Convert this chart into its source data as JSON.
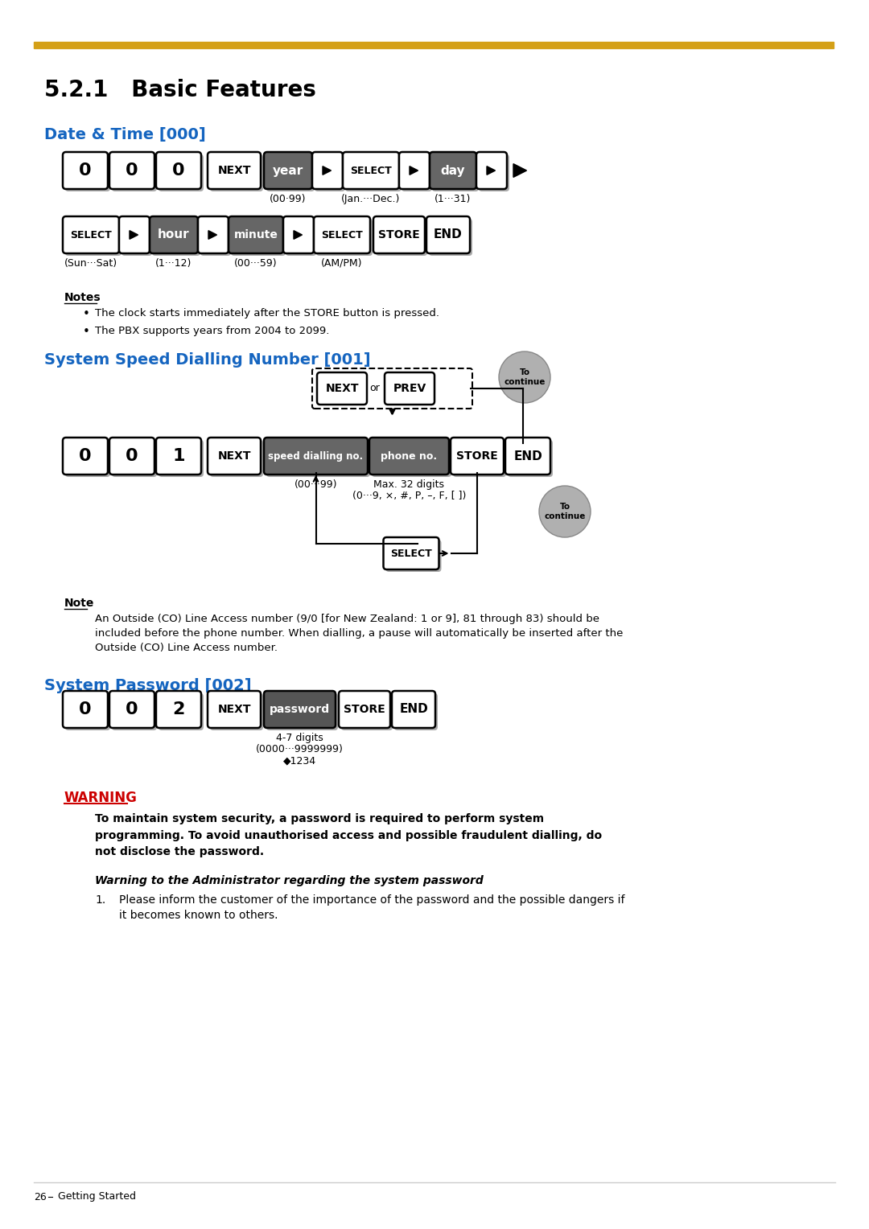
{
  "bg_color": "#ffffff",
  "gold_color": "#D4A017",
  "section_blue": "#1565C0",
  "warning_red": "#CC0000",
  "dark_gray_btn": "#666666",
  "darker_gray_btn": "#555555",
  "shadow_color": "#aaaaaa",
  "continue_circle_color": "#b0b0b0",
  "title": "5.2.1   Basic Features",
  "sec1": "Date & Time [000]",
  "sec2": "System Speed Dialling Number [001]",
  "sec3": "System Password [002]",
  "notes_header": "Notes",
  "note_header": "Note",
  "warning_header": "WARNING",
  "bullet1": "The clock starts immediately after the STORE button is pressed.",
  "bullet2": "The PBX supports years from 2004 to 2099.",
  "co_note1": "An Outside (CO) Line Access number (9/0 [for New Zealand: 1 or 9], 81 through 83) should be",
  "co_note2": "included before the phone number. When dialling, a pause will automatically be inserted after the",
  "co_note3": "Outside (CO) Line Access number.",
  "warn_bold": "To maintain system security, a password is required to perform system\nprogramming. To avoid unauthorised access and possible fraudulent dialling, do\nnot disclose the password.",
  "warn_italic": "Warning to the Administrator regarding the system password",
  "warn_item1": "Please inform the customer of the importance of the password and the possible dangers if\nit becomes known to others.",
  "footer_text": "26    Getting Started"
}
